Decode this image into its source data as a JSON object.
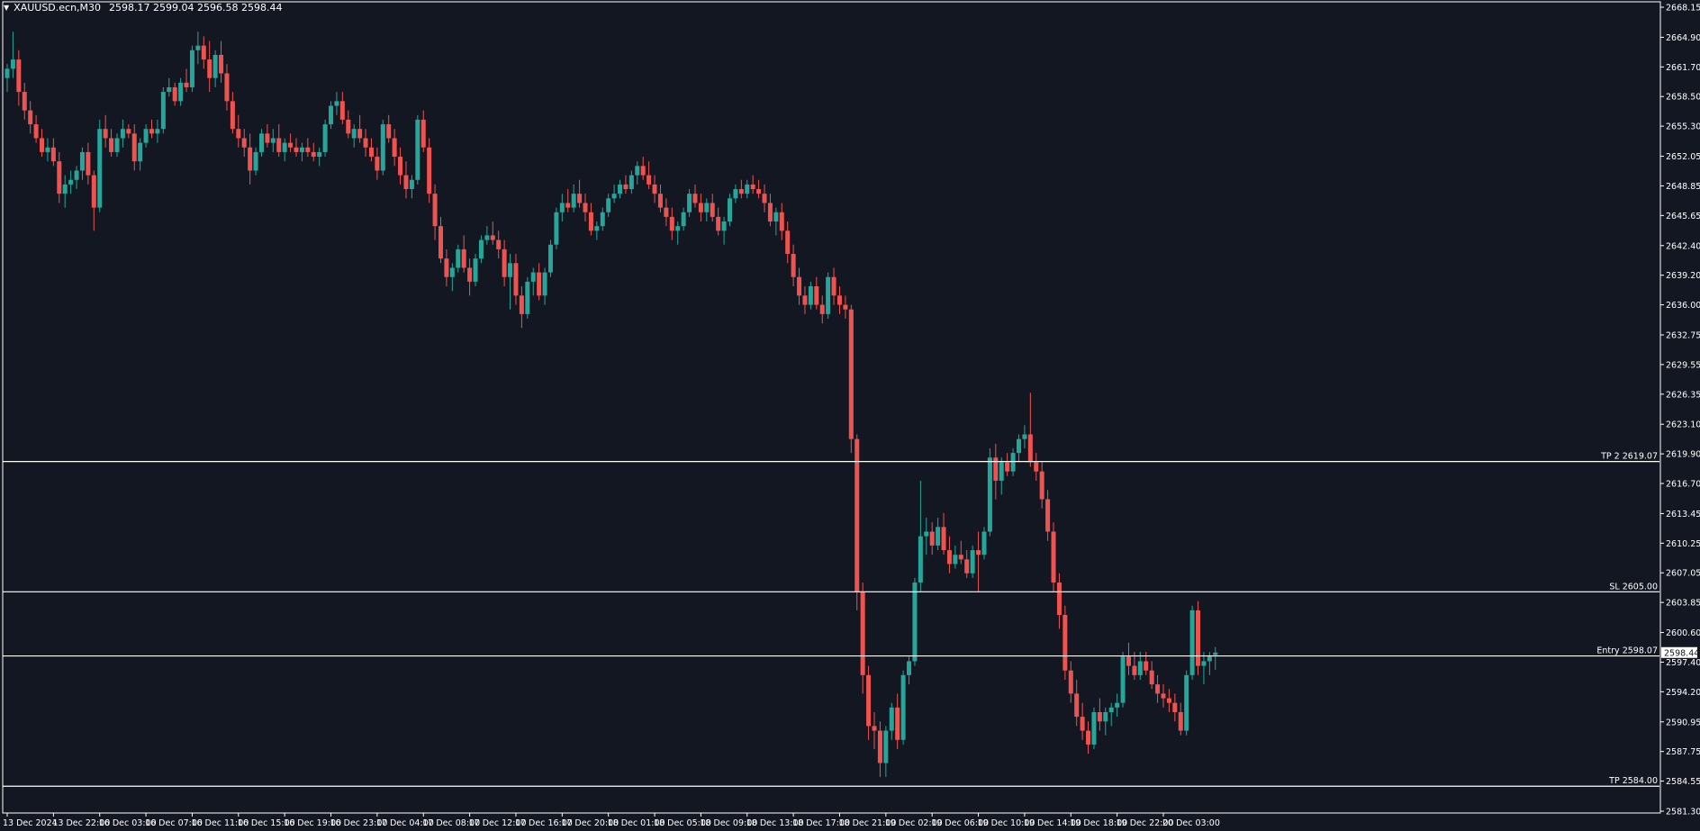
{
  "header": {
    "dropdown_icon": "triangle-down-icon",
    "symbol": "XAUUSD.ecn,M30",
    "ohlc": "2598.17 2599.04 2596.58 2598.44"
  },
  "colors": {
    "background": "#131722",
    "bull": "#26a69a",
    "bear": "#ef5350",
    "lines": "#ffffff",
    "text": "#ffffff"
  },
  "chart_data": {
    "type": "candlestick",
    "title": "",
    "timeframe": "M30",
    "y_range": [
      2581.3,
      2668.15
    ],
    "y_ticks": [
      "2668.15",
      "2664.90",
      "2661.70",
      "2658.50",
      "2655.30",
      "2652.05",
      "2648.85",
      "2645.65",
      "2642.40",
      "2639.20",
      "2636.00",
      "2632.75",
      "2629.55",
      "2626.35",
      "2623.10",
      "2619.90",
      "2616.70",
      "2613.45",
      "2610.25",
      "2607.05",
      "2603.85",
      "2600.60",
      "2597.40",
      "2594.20",
      "2590.95",
      "2587.75",
      "2584.55",
      "2581.30"
    ],
    "x_labels": [
      {
        "i": 0,
        "text": "13 Dec 2024"
      },
      {
        "i": 8,
        "text": "13 Dec 22:00"
      },
      {
        "i": 16,
        "text": "16 Dec 03:00"
      },
      {
        "i": 24,
        "text": "16 Dec 07:00"
      },
      {
        "i": 32,
        "text": "16 Dec 11:00"
      },
      {
        "i": 40,
        "text": "16 Dec 15:00"
      },
      {
        "i": 48,
        "text": "16 Dec 19:00"
      },
      {
        "i": 56,
        "text": "16 Dec 23:00"
      },
      {
        "i": 64,
        "text": "17 Dec 04:00"
      },
      {
        "i": 72,
        "text": "17 Dec 08:00"
      },
      {
        "i": 80,
        "text": "17 Dec 12:00"
      },
      {
        "i": 88,
        "text": "17 Dec 16:00"
      },
      {
        "i": 96,
        "text": "17 Dec 20:00"
      },
      {
        "i": 104,
        "text": "18 Dec 01:00"
      },
      {
        "i": 112,
        "text": "18 Dec 05:00"
      },
      {
        "i": 120,
        "text": "18 Dec 09:00"
      },
      {
        "i": 128,
        "text": "18 Dec 13:00"
      },
      {
        "i": 136,
        "text": "18 Dec 17:00"
      },
      {
        "i": 144,
        "text": "18 Dec 21:00"
      },
      {
        "i": 152,
        "text": "19 Dec 02:00"
      },
      {
        "i": 160,
        "text": "19 Dec 06:00"
      },
      {
        "i": 168,
        "text": "19 Dec 10:00"
      },
      {
        "i": 176,
        "text": "19 Dec 14:00"
      },
      {
        "i": 184,
        "text": "19 Dec 18:00"
      },
      {
        "i": 192,
        "text": "19 Dec 22:00"
      },
      {
        "i": 200,
        "text": "20 Dec 03:00"
      }
    ],
    "levels": [
      {
        "label": "TP 2 2619.07",
        "price": 2619.07
      },
      {
        "label": "SL 2605.00",
        "price": 2605.0
      },
      {
        "label": "Entry 2598.07",
        "price": 2598.07
      },
      {
        "label": "TP 2584.00",
        "price": 2584.0
      }
    ],
    "current_price": {
      "label": "2598.44",
      "price": 2598.44
    },
    "candles": [
      [
        2660.5,
        2662.0,
        2659.0,
        2661.5
      ],
      [
        2661.5,
        2665.5,
        2660.5,
        2662.5
      ],
      [
        2662.5,
        2663.5,
        2657.5,
        2659.0
      ],
      [
        2659.0,
        2660.0,
        2656.0,
        2657.0
      ],
      [
        2657.0,
        2658.0,
        2654.5,
        2655.5
      ],
      [
        2655.5,
        2656.5,
        2653.5,
        2654.0
      ],
      [
        2654.0,
        2655.0,
        2652.0,
        2652.5
      ],
      [
        2652.5,
        2654.0,
        2651.5,
        2653.0
      ],
      [
        2653.0,
        2654.0,
        2651.0,
        2651.5
      ],
      [
        2651.5,
        2652.5,
        2647.0,
        2648.0
      ],
      [
        2648.0,
        2650.0,
        2646.5,
        2649.0
      ],
      [
        2649.0,
        2650.5,
        2648.0,
        2649.5
      ],
      [
        2649.5,
        2651.0,
        2648.5,
        2650.5
      ],
      [
        2650.5,
        2653.0,
        2649.5,
        2652.5
      ],
      [
        2652.5,
        2653.5,
        2649.0,
        2650.0
      ],
      [
        2650.0,
        2650.5,
        2644.0,
        2646.5
      ],
      [
        2646.5,
        2656.0,
        2646.0,
        2655.0
      ],
      [
        2655.0,
        2656.5,
        2653.0,
        2654.0
      ],
      [
        2654.0,
        2655.0,
        2652.0,
        2652.5
      ],
      [
        2652.5,
        2654.5,
        2652.0,
        2654.0
      ],
      [
        2654.0,
        2656.0,
        2653.0,
        2655.0
      ],
      [
        2655.0,
        2655.5,
        2654.0,
        2654.5
      ],
      [
        2654.5,
        2655.5,
        2650.5,
        2651.5
      ],
      [
        2651.5,
        2654.0,
        2650.5,
        2653.5
      ],
      [
        2653.5,
        2655.5,
        2653.0,
        2655.0
      ],
      [
        2655.0,
        2656.0,
        2654.0,
        2654.5
      ],
      [
        2654.5,
        2656.0,
        2653.5,
        2655.0
      ],
      [
        2655.0,
        2659.5,
        2654.5,
        2659.0
      ],
      [
        2659.0,
        2660.5,
        2658.5,
        2659.5
      ],
      [
        2659.5,
        2660.0,
        2657.5,
        2658.0
      ],
      [
        2658.0,
        2660.5,
        2657.5,
        2660.0
      ],
      [
        2660.0,
        2661.5,
        2659.0,
        2659.5
      ],
      [
        2659.5,
        2664.0,
        2659.0,
        2663.5
      ],
      [
        2663.5,
        2665.5,
        2662.0,
        2664.0
      ],
      [
        2664.0,
        2665.0,
        2661.5,
        2662.5
      ],
      [
        2662.5,
        2664.5,
        2659.0,
        2660.5
      ],
      [
        2660.5,
        2663.5,
        2659.5,
        2663.0
      ],
      [
        2663.0,
        2664.5,
        2660.0,
        2661.0
      ],
      [
        2661.0,
        2662.0,
        2657.0,
        2658.0
      ],
      [
        2658.0,
        2659.0,
        2654.5,
        2655.0
      ],
      [
        2655.0,
        2656.5,
        2653.0,
        2654.0
      ],
      [
        2654.0,
        2655.0,
        2652.0,
        2653.0
      ],
      [
        2653.0,
        2654.5,
        2649.0,
        2650.5
      ],
      [
        2650.5,
        2653.0,
        2650.0,
        2652.5
      ],
      [
        2652.5,
        2655.0,
        2652.0,
        2654.5
      ],
      [
        2654.5,
        2655.5,
        2653.0,
        2653.5
      ],
      [
        2653.5,
        2655.0,
        2652.5,
        2654.0
      ],
      [
        2654.0,
        2655.5,
        2652.0,
        2652.5
      ],
      [
        2652.5,
        2654.0,
        2651.5,
        2653.5
      ],
      [
        2653.5,
        2654.5,
        2652.5,
        2653.0
      ],
      [
        2653.0,
        2654.0,
        2652.0,
        2652.5
      ],
      [
        2652.5,
        2653.5,
        2651.5,
        2653.0
      ],
      [
        2653.0,
        2654.0,
        2652.0,
        2652.5
      ],
      [
        2652.5,
        2653.5,
        2651.5,
        2652.0
      ],
      [
        2652.0,
        2653.0,
        2651.0,
        2652.5
      ],
      [
        2652.5,
        2656.0,
        2652.0,
        2655.5
      ],
      [
        2655.5,
        2658.0,
        2655.0,
        2657.5
      ],
      [
        2657.5,
        2659.0,
        2656.5,
        2658.0
      ],
      [
        2658.0,
        2659.0,
        2655.5,
        2656.0
      ],
      [
        2656.0,
        2657.0,
        2654.0,
        2654.5
      ],
      [
        2654.0,
        2655.5,
        2653.0,
        2655.0
      ],
      [
        2655.0,
        2656.5,
        2653.5,
        2654.0
      ],
      [
        2654.0,
        2655.0,
        2652.0,
        2653.0
      ],
      [
        2653.0,
        2654.0,
        2651.5,
        2652.0
      ],
      [
        2652.0,
        2653.0,
        2649.5,
        2650.5
      ],
      [
        2650.5,
        2656.0,
        2650.0,
        2655.5
      ],
      [
        2655.5,
        2656.5,
        2653.5,
        2654.0
      ],
      [
        2654.0,
        2655.0,
        2651.0,
        2652.0
      ],
      [
        2652.0,
        2653.0,
        2649.0,
        2650.0
      ],
      [
        2650.0,
        2651.5,
        2647.5,
        2648.5
      ],
      [
        2648.5,
        2650.0,
        2647.5,
        2649.5
      ],
      [
        2649.5,
        2656.5,
        2649.0,
        2656.0
      ],
      [
        2656.0,
        2657.0,
        2652.5,
        2653.0
      ],
      [
        2653.0,
        2654.0,
        2647.0,
        2648.0
      ],
      [
        2648.0,
        2649.0,
        2643.0,
        2644.5
      ],
      [
        2644.5,
        2645.5,
        2640.5,
        2641.0
      ],
      [
        2641.0,
        2642.0,
        2638.0,
        2639.0
      ],
      [
        2639.0,
        2640.5,
        2637.5,
        2640.0
      ],
      [
        2640.0,
        2642.5,
        2639.5,
        2642.0
      ],
      [
        2642.0,
        2643.5,
        2639.5,
        2640.0
      ],
      [
        2640.0,
        2641.0,
        2637.0,
        2638.5
      ],
      [
        2638.5,
        2641.5,
        2638.0,
        2641.0
      ],
      [
        2641.0,
        2643.5,
        2640.5,
        2643.0
      ],
      [
        2643.0,
        2644.5,
        2642.5,
        2643.5
      ],
      [
        2643.5,
        2645.0,
        2642.5,
        2643.0
      ],
      [
        2643.0,
        2644.0,
        2641.0,
        2642.0
      ],
      [
        2642.0,
        2643.0,
        2638.0,
        2639.0
      ],
      [
        2639.0,
        2641.5,
        2635.5,
        2640.5
      ],
      [
        2640.5,
        2641.5,
        2636.0,
        2637.0
      ],
      [
        2637.0,
        2638.0,
        2633.5,
        2635.0
      ],
      [
        2635.0,
        2639.0,
        2634.5,
        2638.5
      ],
      [
        2638.5,
        2640.0,
        2637.0,
        2639.5
      ],
      [
        2639.5,
        2640.5,
        2636.5,
        2637.0
      ],
      [
        2637.0,
        2640.0,
        2636.0,
        2639.5
      ],
      [
        2639.5,
        2643.0,
        2639.0,
        2642.5
      ],
      [
        2642.5,
        2646.5,
        2642.0,
        2646.0
      ],
      [
        2646.0,
        2648.0,
        2645.0,
        2647.0
      ],
      [
        2647.0,
        2648.5,
        2646.0,
        2646.5
      ],
      [
        2646.5,
        2649.0,
        2646.0,
        2648.0
      ],
      [
        2648.0,
        2649.5,
        2646.5,
        2647.0
      ],
      [
        2647.0,
        2648.0,
        2645.0,
        2646.0
      ],
      [
        2646.0,
        2647.0,
        2643.5,
        2644.0
      ],
      [
        2644.0,
        2645.0,
        2643.0,
        2644.5
      ],
      [
        2644.5,
        2646.5,
        2644.0,
        2646.0
      ],
      [
        2646.0,
        2648.0,
        2645.5,
        2647.5
      ],
      [
        2647.5,
        2649.0,
        2647.0,
        2648.0
      ],
      [
        2648.0,
        2649.5,
        2647.5,
        2649.0
      ],
      [
        2649.0,
        2650.0,
        2648.0,
        2648.5
      ],
      [
        2648.5,
        2650.5,
        2648.0,
        2650.0
      ],
      [
        2650.0,
        2651.5,
        2649.0,
        2651.0
      ],
      [
        2651.0,
        2652.0,
        2649.5,
        2650.0
      ],
      [
        2650.0,
        2651.5,
        2648.5,
        2649.0
      ],
      [
        2649.0,
        2650.0,
        2647.0,
        2648.0
      ],
      [
        2648.0,
        2649.0,
        2646.0,
        2646.5
      ],
      [
        2646.5,
        2647.5,
        2644.5,
        2645.5
      ],
      [
        2645.5,
        2646.5,
        2643.0,
        2644.0
      ],
      [
        2644.0,
        2645.0,
        2642.5,
        2644.5
      ],
      [
        2644.5,
        2646.5,
        2644.0,
        2646.0
      ],
      [
        2646.0,
        2648.5,
        2645.5,
        2648.0
      ],
      [
        2648.0,
        2649.0,
        2646.5,
        2647.0
      ],
      [
        2647.0,
        2648.0,
        2645.0,
        2646.0
      ],
      [
        2646.0,
        2647.5,
        2645.0,
        2647.0
      ],
      [
        2647.0,
        2648.0,
        2645.0,
        2645.5
      ],
      [
        2645.5,
        2646.5,
        2643.5,
        2644.0
      ],
      [
        2644.0,
        2645.5,
        2642.5,
        2645.0
      ],
      [
        2645.0,
        2648.0,
        2644.5,
        2647.5
      ],
      [
        2647.5,
        2649.0,
        2647.0,
        2648.5
      ],
      [
        2648.5,
        2649.5,
        2647.5,
        2648.0
      ],
      [
        2648.0,
        2649.5,
        2647.5,
        2649.0
      ],
      [
        2649.0,
        2650.0,
        2648.0,
        2648.5
      ],
      [
        2648.5,
        2649.5,
        2647.5,
        2648.0
      ],
      [
        2648.0,
        2649.0,
        2646.0,
        2647.0
      ],
      [
        2647.0,
        2648.0,
        2644.5,
        2645.0
      ],
      [
        2645.0,
        2646.5,
        2643.5,
        2646.0
      ],
      [
        2646.0,
        2647.0,
        2643.0,
        2644.0
      ],
      [
        2644.0,
        2645.0,
        2640.5,
        2641.5
      ],
      [
        2641.5,
        2642.5,
        2638.0,
        2639.0
      ],
      [
        2639.0,
        2640.0,
        2636.0,
        2637.0
      ],
      [
        2637.0,
        2638.0,
        2635.0,
        2636.0
      ],
      [
        2636.0,
        2638.5,
        2635.5,
        2638.0
      ],
      [
        2638.0,
        2639.0,
        2635.5,
        2636.0
      ],
      [
        2636.0,
        2637.0,
        2634.0,
        2635.0
      ],
      [
        2635.0,
        2639.5,
        2634.5,
        2639.0
      ],
      [
        2639.0,
        2640.0,
        2636.0,
        2637.0
      ],
      [
        2637.0,
        2638.0,
        2635.0,
        2636.0
      ],
      [
        2636.0,
        2637.0,
        2634.5,
        2635.5
      ],
      [
        2635.5,
        2636.0,
        2620.0,
        2621.5
      ],
      [
        2621.5,
        2622.0,
        2603.0,
        2605.0
      ],
      [
        2605.0,
        2606.0,
        2594.0,
        2596.0
      ],
      [
        2596.0,
        2597.0,
        2589.0,
        2590.5
      ],
      [
        2590.5,
        2592.0,
        2588.0,
        2590.0
      ],
      [
        2590.0,
        2591.0,
        2585.0,
        2586.5
      ],
      [
        2586.5,
        2590.5,
        2585.0,
        2590.0
      ],
      [
        2590.0,
        2593.0,
        2589.0,
        2592.5
      ],
      [
        2592.5,
        2594.0,
        2588.0,
        2589.0
      ],
      [
        2589.0,
        2596.5,
        2588.5,
        2596.0
      ],
      [
        2596.0,
        2598.0,
        2595.0,
        2597.5
      ],
      [
        2597.5,
        2606.5,
        2597.0,
        2606.0
      ],
      [
        2606.0,
        2617.0,
        2605.0,
        2611.0
      ],
      [
        2611.0,
        2613.0,
        2609.0,
        2611.5
      ],
      [
        2611.5,
        2612.5,
        2609.0,
        2610.0
      ],
      [
        2610.0,
        2613.0,
        2609.5,
        2612.0
      ],
      [
        2612.0,
        2613.5,
        2609.0,
        2609.5
      ],
      [
        2609.5,
        2611.0,
        2607.0,
        2608.0
      ],
      [
        2608.0,
        2610.0,
        2607.5,
        2609.0
      ],
      [
        2609.0,
        2610.5,
        2608.0,
        2608.5
      ],
      [
        2608.5,
        2609.5,
        2606.5,
        2607.0
      ],
      [
        2607.0,
        2610.0,
        2606.5,
        2609.5
      ],
      [
        2609.5,
        2611.5,
        2605.0,
        2609.0
      ],
      [
        2609.0,
        2612.0,
        2608.5,
        2611.5
      ],
      [
        2611.5,
        2620.5,
        2611.0,
        2619.5
      ],
      [
        2619.5,
        2621.0,
        2615.0,
        2617.0
      ],
      [
        2617.0,
        2619.5,
        2615.5,
        2619.0
      ],
      [
        2619.0,
        2620.0,
        2617.5,
        2618.0
      ],
      [
        2618.0,
        2620.5,
        2617.5,
        2620.0
      ],
      [
        2620.0,
        2622.0,
        2619.0,
        2621.5
      ],
      [
        2621.5,
        2623.0,
        2620.5,
        2622.0
      ],
      [
        2622.0,
        2626.5,
        2618.5,
        2619.0
      ],
      [
        2619.0,
        2620.0,
        2617.0,
        2618.0
      ],
      [
        2618.0,
        2619.0,
        2614.0,
        2615.0
      ],
      [
        2615.0,
        2616.0,
        2610.5,
        2611.5
      ],
      [
        2611.5,
        2612.5,
        2605.0,
        2606.0
      ],
      [
        2606.0,
        2607.0,
        2601.0,
        2602.5
      ],
      [
        2602.5,
        2603.5,
        2595.5,
        2596.5
      ],
      [
        2596.5,
        2597.5,
        2593.0,
        2594.0
      ],
      [
        2594.0,
        2595.5,
        2590.5,
        2591.5
      ],
      [
        2591.5,
        2593.0,
        2589.0,
        2590.0
      ],
      [
        2590.0,
        2591.0,
        2587.5,
        2588.5
      ],
      [
        2588.5,
        2592.5,
        2588.0,
        2592.0
      ],
      [
        2592.0,
        2593.5,
        2590.0,
        2591.0
      ],
      [
        2591.0,
        2592.5,
        2589.5,
        2592.0
      ],
      [
        2592.0,
        2593.0,
        2590.5,
        2592.5
      ],
      [
        2592.5,
        2594.0,
        2591.5,
        2593.0
      ],
      [
        2593.0,
        2598.5,
        2592.5,
        2598.0
      ],
      [
        2598.0,
        2599.5,
        2596.0,
        2597.0
      ],
      [
        2597.0,
        2598.5,
        2595.5,
        2596.0
      ],
      [
        2596.0,
        2598.5,
        2595.5,
        2597.5
      ],
      [
        2597.5,
        2598.5,
        2596.0,
        2596.5
      ],
      [
        2596.5,
        2597.5,
        2594.5,
        2595.0
      ],
      [
        2595.0,
        2596.0,
        2593.0,
        2594.0
      ],
      [
        2594.0,
        2595.0,
        2592.5,
        2593.5
      ],
      [
        2593.5,
        2594.5,
        2592.0,
        2593.0
      ],
      [
        2593.0,
        2594.0,
        2591.0,
        2592.0
      ],
      [
        2592.0,
        2593.0,
        2589.5,
        2590.0
      ],
      [
        2590.0,
        2596.5,
        2589.5,
        2596.0
      ],
      [
        2596.0,
        2603.5,
        2595.5,
        2603.0
      ],
      [
        2603.0,
        2604.0,
        2596.0,
        2597.0
      ],
      [
        2597.0,
        2598.5,
        2595.0,
        2597.5
      ],
      [
        2597.5,
        2598.5,
        2596.0,
        2598.0
      ],
      [
        2598.17,
        2599.04,
        2596.58,
        2598.44
      ]
    ]
  }
}
